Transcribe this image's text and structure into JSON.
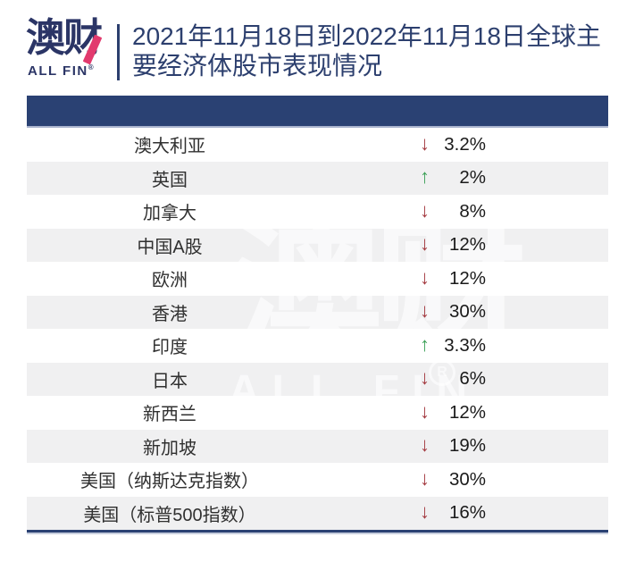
{
  "brand": {
    "logo_cn": "澳财",
    "logo_en": "ALL FIN",
    "registered_mark": "®"
  },
  "header": {
    "title": "2021年11月18日到2022年11月18日全球主要经济体股市表现情况",
    "title_lines": [
      "2021年11月18日到2022年11月18日全球主",
      "要经济体股市表现情况"
    ]
  },
  "watermark": {
    "cn": "澳财",
    "en": "ALL FIN",
    "registered_mark": "R"
  },
  "icons": {
    "up_arrow": "↑",
    "down_arrow": "↓"
  },
  "colors": {
    "navy": "#2a4173",
    "title_navy": "#2c3f6e",
    "logo_navy": "#2b3566",
    "logo_pink": "#e23a6e",
    "row_alt": "#f0f0f1",
    "up_green": "#3da158",
    "down_red": "#a43a40",
    "value_text": "#1a1a1a",
    "label_text": "#303030"
  },
  "table": {
    "rows": [
      {
        "label": "澳大利亚",
        "direction": "down",
        "value": "3.2%"
      },
      {
        "label": "英国",
        "direction": "up",
        "value": "2%"
      },
      {
        "label": "加拿大",
        "direction": "down",
        "value": "8%"
      },
      {
        "label": "中国A股",
        "direction": "down",
        "value": "12%"
      },
      {
        "label": "欧洲",
        "direction": "down",
        "value": "12%"
      },
      {
        "label": "香港",
        "direction": "down",
        "value": "30%"
      },
      {
        "label": "印度",
        "direction": "up",
        "value": "3.3%"
      },
      {
        "label": "日本",
        "direction": "down",
        "value": "6%"
      },
      {
        "label": "新西兰",
        "direction": "down",
        "value": "12%"
      },
      {
        "label": "新加坡",
        "direction": "down",
        "value": "19%"
      },
      {
        "label": "美国（纳斯达克指数）",
        "direction": "down",
        "value": "30%"
      },
      {
        "label": "美国（标普500指数）",
        "direction": "down",
        "value": "16%"
      }
    ]
  },
  "chart_data": {
    "type": "table",
    "title": "2021年11月18日到2022年11月18日全球主要经济体股市表现情况",
    "categories": [
      "澳大利亚",
      "英国",
      "加拿大",
      "中国A股",
      "欧洲",
      "香港",
      "印度",
      "日本",
      "新西兰",
      "新加坡",
      "美国（纳斯达克指数）",
      "美国（标普500指数）"
    ],
    "values": [
      -3.2,
      2,
      -8,
      -12,
      -12,
      -30,
      3.3,
      -6,
      -12,
      -19,
      -30,
      -16
    ],
    "unit": "%",
    "notes": "red down arrow = decline, green up arrow = gain"
  }
}
